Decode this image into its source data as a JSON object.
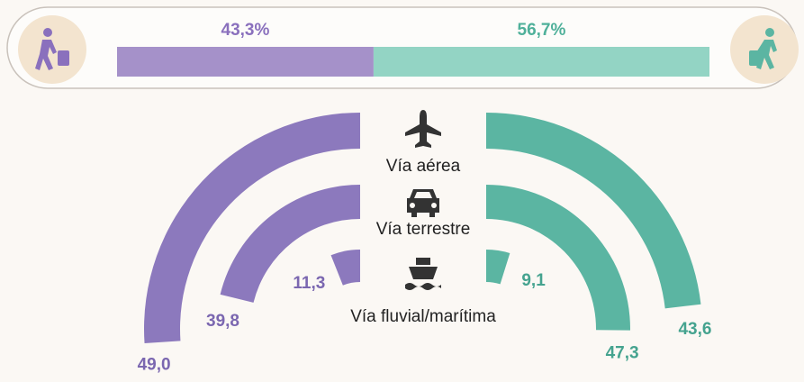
{
  "chart_data": [
    {
      "type": "stacked-bar",
      "values": [
        43.3,
        56.7
      ],
      "value_labels": [
        "43,3%",
        "56,7%"
      ],
      "colors": [
        "#a591c9",
        "#93d4c4"
      ],
      "label_colors": [
        "#8a70bd",
        "#4fb09a"
      ]
    },
    {
      "type": "radial-bar",
      "categories": [
        "Vía aérea",
        "Vía terrestre",
        "Vía fluvial/marítima"
      ],
      "series": [
        {
          "color": "#8c79bd",
          "label_color": "#7b67b0",
          "values": [
            49.0,
            39.8,
            11.3
          ],
          "value_labels": [
            "49,0",
            "39,8",
            "11,3"
          ]
        },
        {
          "color": "#5bb5a2",
          "label_color": "#45a38f",
          "values": [
            43.6,
            47.3,
            9.1
          ],
          "value_labels": [
            "43,6",
            "47,3",
            "9,1"
          ]
        }
      ]
    }
  ]
}
